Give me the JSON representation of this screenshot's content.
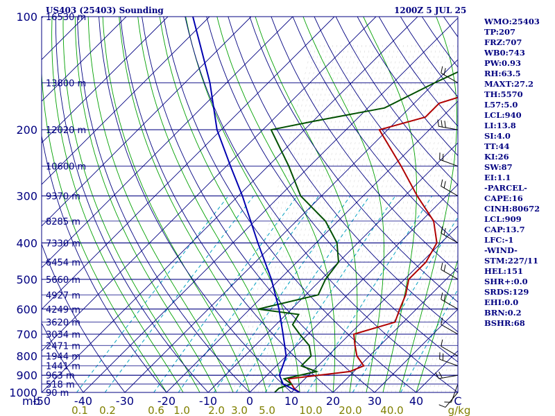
{
  "header": {
    "station": "US403 (25403) Sounding",
    "time": "1200Z  5 JUL 25"
  },
  "colors": {
    "frame": "#000080",
    "isotherm": "#000080",
    "dry_adiabat": "#000080",
    "moist_adiabat": "#00a000",
    "mixing_ratio": "#00a0c0",
    "temperature": "#b00000",
    "dewpoint": "#005000",
    "parcel": "#0000b0",
    "label": "#000080",
    "mixing_label": "#808000"
  },
  "axes": {
    "pressure_ticks": [
      "100",
      "200",
      "300",
      "400",
      "500",
      "600",
      "700",
      "800",
      "900",
      "1000"
    ],
    "unit_label": "mb",
    "temp_ticks": [
      "-50",
      "-40",
      "-30",
      "-20",
      "-10",
      "0",
      "10",
      "20",
      "30",
      "40",
      "C"
    ],
    "mixing_labels": [
      "0.1",
      "0.2",
      "0.6",
      "1.0",
      "2.0",
      "3.0",
      "5.0",
      "10.0",
      "20.0",
      "40.0",
      "g/kg"
    ]
  },
  "heights": [
    "16530 m",
    "13800 m",
    "12020 m",
    "10600 m",
    "9370 m",
    "8285 m",
    "7330 m",
    "6454 m",
    "5660 m",
    "4927 m",
    "4249 m",
    "3620 m",
    "3034 m",
    "2471 m",
    "1944 m",
    "1441 m",
    "963 m",
    "518 m",
    "90 m"
  ],
  "stats": [
    "WMO:25403",
    "TP:207",
    "FRZ:707",
    "WB0:743",
    "PW:0.93",
    "RH:63.5",
    "MAXT:27.2",
    "TH:5570",
    "L57:5.0",
    "LCL:940",
    "LI:13.8",
    "SI:4.0",
    "TT:44",
    "KI:26",
    "SW:87",
    "EI:1.1",
    "-PARCEL-",
    "CAPE:16",
    "CINH:80672",
    "LCL:909",
    "CAP:13.7",
    "LFC:-1",
    "-WIND-",
    "STM:227/11",
    "HEL:151",
    "SHR+:0.0",
    "SRDS:129",
    "EHI:0.0",
    "BRN:0.2",
    "BSHR:68"
  ],
  "chart_data": {
    "type": "line",
    "title": "US403 (25403) Sounding",
    "xlabel": "C",
    "ylabel": "mb",
    "pressure_range": [
      1000,
      100
    ],
    "temperature_range_at_surface": [
      -50,
      50
    ],
    "y_scale": "log-pressure (skew-T)",
    "series": [
      {
        "key": "temperature",
        "points": [
          [
            1000,
            12
          ],
          [
            980,
            10
          ],
          [
            950,
            8
          ],
          [
            920,
            6
          ],
          [
            880,
            19
          ],
          [
            850,
            21
          ],
          [
            800,
            17
          ],
          [
            750,
            14
          ],
          [
            700,
            11
          ],
          [
            650,
            18
          ],
          [
            600,
            16
          ],
          [
            550,
            14
          ],
          [
            500,
            11
          ],
          [
            450,
            11
          ],
          [
            400,
            9
          ],
          [
            350,
            3
          ],
          [
            300,
            -7
          ],
          [
            250,
            -18
          ],
          [
            200,
            -32
          ],
          [
            185,
            -24
          ],
          [
            170,
            -24
          ],
          [
            150,
            -13
          ],
          [
            140,
            -12
          ],
          [
            120,
            -9
          ],
          [
            100,
            -2
          ]
        ]
      },
      {
        "key": "dewpoint",
        "points": [
          [
            1000,
            6
          ],
          [
            975,
            6
          ],
          [
            950,
            8
          ],
          [
            920,
            5
          ],
          [
            880,
            11
          ],
          [
            850,
            6
          ],
          [
            800,
            6
          ],
          [
            750,
            3
          ],
          [
            700,
            -2
          ],
          [
            660,
            -6
          ],
          [
            620,
            -7
          ],
          [
            600,
            -18
          ],
          [
            550,
            -7
          ],
          [
            500,
            -9
          ],
          [
            450,
            -10
          ],
          [
            400,
            -15
          ],
          [
            350,
            -23
          ],
          [
            300,
            -35
          ],
          [
            250,
            -45
          ],
          [
            200,
            -58
          ],
          [
            190,
            -50
          ],
          [
            175,
            -36
          ],
          [
            150,
            -30
          ],
          [
            120,
            -20
          ],
          [
            100,
            -10
          ]
        ]
      },
      {
        "key": "parcel",
        "points": [
          [
            1000,
            12
          ],
          [
            950,
            6
          ],
          [
            900,
            3
          ],
          [
            800,
            0
          ],
          [
            700,
            -6
          ],
          [
            600,
            -13
          ],
          [
            500,
            -22
          ],
          [
            400,
            -34
          ],
          [
            300,
            -49
          ],
          [
            250,
            -59
          ],
          [
            200,
            -71
          ],
          [
            150,
            -84
          ],
          [
            120,
            -95
          ],
          [
            100,
            -104
          ]
        ]
      }
    ],
    "winds": [
      {
        "p": 1000,
        "dir": 220,
        "spd": 10
      },
      {
        "p": 950,
        "dir": 200,
        "spd": 12
      },
      {
        "p": 900,
        "dir": 260,
        "spd": 18
      },
      {
        "p": 850,
        "dir": 290,
        "spd": 15
      },
      {
        "p": 800,
        "dir": 300,
        "spd": 10
      },
      {
        "p": 700,
        "dir": 300,
        "spd": 10
      },
      {
        "p": 600,
        "dir": 300,
        "spd": 15
      },
      {
        "p": 500,
        "dir": 300,
        "spd": 15
      },
      {
        "p": 400,
        "dir": 300,
        "spd": 20
      },
      {
        "p": 300,
        "dir": 300,
        "spd": 20
      },
      {
        "p": 250,
        "dir": 290,
        "spd": 20
      },
      {
        "p": 200,
        "dir": 280,
        "spd": 30
      },
      {
        "p": 150,
        "dir": 300,
        "spd": 15
      }
    ]
  }
}
